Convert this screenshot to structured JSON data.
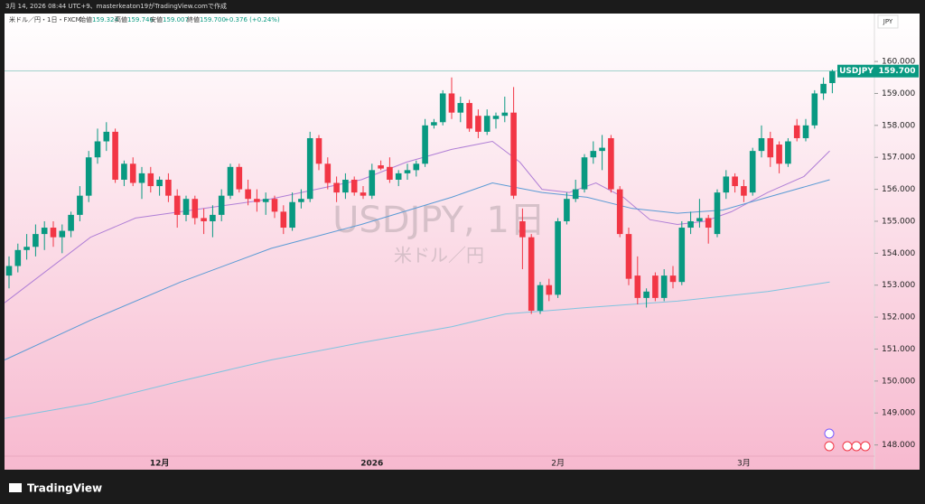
{
  "chart_data": {
    "type": "candlestick",
    "caption": "3月 14, 2026 08:44 UTC+9、masterkeaton19がTradingView.comで作成",
    "legend": {
      "instrument": "米ドル／円・1日・FXCM",
      "open_label": "始値",
      "open": "159.324",
      "high_label": "高値",
      "high": "159.746",
      "low_label": "安値",
      "low": "159.007",
      "close_label": "終値",
      "close": "159.700",
      "change": "+0.376 (+0.24%)"
    },
    "currency": "JPY",
    "watermark": "USDJPY, 1日",
    "watermark_sub": "米ドル／円",
    "symbol": "USDJPY",
    "last_price": {
      "value": 159.7,
      "label": "159.700"
    },
    "brand": "TradingView",
    "up_color": "#089981",
    "down_color": "#f23645",
    "ylim": [
      147.65,
      161.5
    ],
    "yticks": [
      {
        "value": 148,
        "label": "148.000"
      },
      {
        "value": 149,
        "label": "149.000"
      },
      {
        "value": 150,
        "label": "150.000"
      },
      {
        "value": 151,
        "label": "151.000"
      },
      {
        "value": 152,
        "label": "152.000"
      },
      {
        "value": 153,
        "label": "153.000"
      },
      {
        "value": 154,
        "label": "154.000"
      },
      {
        "value": 155,
        "label": "155.000"
      },
      {
        "value": 156,
        "label": "156.000"
      },
      {
        "value": 157,
        "label": "157.000"
      },
      {
        "value": 158,
        "label": "158.000"
      },
      {
        "value": 159,
        "label": "159.000"
      },
      {
        "value": 160,
        "label": "160.000"
      }
    ],
    "categories": [
      null,
      null,
      null,
      null,
      null,
      null,
      null,
      null,
      null,
      null,
      null,
      null,
      null,
      null,
      null,
      null,
      null,
      "12月",
      null,
      null,
      null,
      null,
      null,
      null,
      null,
      null,
      null,
      null,
      null,
      null,
      null,
      null,
      null,
      null,
      null,
      null,
      null,
      null,
      null,
      null,
      null,
      "2026",
      null,
      null,
      null,
      null,
      null,
      null,
      null,
      null,
      null,
      null,
      null,
      null,
      null,
      null,
      null,
      null,
      null,
      null,
      null,
      null,
      "2月",
      null,
      null,
      null,
      null,
      null,
      null,
      null,
      null,
      null,
      null,
      null,
      null,
      null,
      null,
      null,
      null,
      null,
      null,
      null,
      null,
      "3月",
      null,
      null,
      null,
      null,
      null,
      null,
      null,
      null,
      null,
      null
    ],
    "ohlc": [
      [
        153.3,
        153.9,
        152.9,
        153.6
      ],
      [
        153.6,
        154.3,
        153.4,
        154.1
      ],
      [
        154.1,
        154.6,
        153.8,
        154.2
      ],
      [
        154.2,
        154.9,
        153.9,
        154.6
      ],
      [
        154.6,
        155.0,
        154.1,
        154.8
      ],
      [
        154.8,
        155.0,
        154.2,
        154.5
      ],
      [
        154.5,
        154.9,
        154.0,
        154.7
      ],
      [
        154.7,
        155.3,
        154.5,
        155.2
      ],
      [
        155.2,
        156.1,
        155.0,
        155.8
      ],
      [
        155.8,
        157.2,
        155.6,
        157.0
      ],
      [
        157.0,
        157.9,
        156.8,
        157.5
      ],
      [
        157.5,
        158.1,
        157.2,
        157.8
      ],
      [
        157.8,
        157.9,
        156.2,
        156.3
      ],
      [
        156.3,
        156.9,
        156.1,
        156.8
      ],
      [
        156.8,
        157.0,
        156.1,
        156.2
      ],
      [
        156.2,
        156.7,
        155.7,
        156.5
      ],
      [
        156.5,
        156.7,
        155.9,
        156.1
      ],
      [
        156.1,
        156.4,
        155.8,
        156.3
      ],
      [
        156.3,
        156.5,
        155.6,
        155.8
      ],
      [
        155.8,
        156.0,
        154.8,
        155.2
      ],
      [
        155.2,
        155.8,
        155.0,
        155.7
      ],
      [
        155.7,
        155.8,
        154.9,
        155.1
      ],
      [
        155.1,
        155.4,
        154.6,
        155.0
      ],
      [
        155.0,
        155.5,
        154.5,
        155.2
      ],
      [
        155.2,
        156.0,
        155.0,
        155.8
      ],
      [
        155.8,
        156.8,
        155.7,
        156.7
      ],
      [
        156.7,
        156.8,
        155.9,
        156.0
      ],
      [
        156.0,
        156.3,
        155.5,
        155.7
      ],
      [
        155.7,
        156.0,
        155.3,
        155.6
      ],
      [
        155.6,
        155.9,
        155.2,
        155.7
      ],
      [
        155.7,
        155.8,
        155.1,
        155.3
      ],
      [
        155.3,
        155.5,
        154.6,
        154.8
      ],
      [
        154.8,
        155.9,
        154.7,
        155.6
      ],
      [
        155.6,
        156.0,
        155.4,
        155.7
      ],
      [
        155.7,
        157.8,
        155.6,
        157.6
      ],
      [
        157.6,
        157.7,
        156.6,
        156.8
      ],
      [
        156.8,
        157.0,
        156.0,
        156.2
      ],
      [
        156.2,
        156.4,
        155.6,
        155.9
      ],
      [
        155.9,
        156.5,
        155.7,
        156.3
      ],
      [
        156.3,
        156.4,
        155.8,
        155.9
      ],
      [
        155.9,
        156.1,
        155.7,
        155.8
      ],
      [
        155.8,
        156.8,
        155.7,
        156.6
      ],
      [
        156.75,
        156.9,
        156.6,
        156.65
      ],
      [
        156.7,
        157.0,
        156.2,
        156.3
      ],
      [
        156.3,
        156.6,
        156.1,
        156.5
      ],
      [
        156.5,
        156.8,
        156.3,
        156.6
      ],
      [
        156.6,
        156.9,
        156.4,
        156.8
      ],
      [
        156.8,
        158.2,
        156.7,
        158.0
      ],
      [
        158.0,
        158.2,
        157.9,
        158.1
      ],
      [
        158.1,
        159.1,
        158.0,
        159.0
      ],
      [
        159.0,
        159.5,
        158.2,
        158.4
      ],
      [
        158.4,
        158.9,
        158.1,
        158.7
      ],
      [
        158.7,
        158.8,
        157.8,
        157.9
      ],
      [
        158.3,
        158.5,
        157.6,
        157.8
      ],
      [
        157.8,
        158.5,
        157.7,
        158.3
      ],
      [
        158.2,
        158.4,
        157.9,
        158.3
      ],
      [
        158.3,
        158.9,
        158.1,
        158.4
      ],
      [
        158.4,
        159.2,
        155.7,
        155.8
      ],
      [
        155.0,
        155.4,
        153.5,
        154.5
      ],
      [
        154.5,
        154.6,
        152.1,
        152.2
      ],
      [
        152.2,
        153.1,
        152.1,
        153.0
      ],
      [
        153.0,
        153.2,
        152.5,
        152.7
      ],
      [
        152.7,
        155.1,
        152.6,
        155.0
      ],
      [
        155.0,
        155.9,
        154.9,
        155.7
      ],
      [
        155.7,
        156.3,
        155.6,
        156.0
      ],
      [
        156.0,
        157.1,
        155.9,
        157.0
      ],
      [
        157.0,
        157.5,
        156.8,
        157.2
      ],
      [
        157.2,
        157.7,
        156.6,
        157.3
      ],
      [
        157.6,
        157.7,
        155.9,
        156.0
      ],
      [
        156.0,
        156.1,
        154.5,
        154.6
      ],
      [
        154.6,
        154.8,
        153.0,
        153.2
      ],
      [
        153.3,
        153.9,
        152.4,
        152.6
      ],
      [
        152.6,
        152.9,
        152.3,
        152.8
      ],
      [
        153.3,
        153.4,
        152.5,
        152.6
      ],
      [
        152.6,
        153.5,
        152.5,
        153.3
      ],
      [
        153.3,
        153.6,
        152.9,
        153.1
      ],
      [
        153.1,
        155.0,
        153.0,
        154.8
      ],
      [
        154.8,
        155.3,
        154.6,
        155.0
      ],
      [
        155.0,
        155.7,
        154.8,
        155.1
      ],
      [
        155.1,
        155.2,
        154.3,
        154.8
      ],
      [
        154.6,
        156.0,
        154.5,
        155.9
      ],
      [
        155.9,
        156.6,
        155.7,
        156.4
      ],
      [
        156.4,
        156.5,
        155.9,
        156.1
      ],
      [
        156.1,
        156.3,
        155.6,
        155.8
      ],
      [
        155.9,
        157.3,
        155.8,
        157.2
      ],
      [
        157.2,
        158.0,
        157.0,
        157.6
      ],
      [
        157.6,
        157.8,
        156.7,
        157.0
      ],
      [
        157.4,
        157.5,
        156.5,
        156.8
      ],
      [
        156.8,
        157.6,
        156.7,
        157.5
      ],
      [
        158.0,
        158.2,
        157.5,
        157.6
      ],
      [
        157.6,
        158.2,
        157.5,
        158.0
      ],
      [
        158.0,
        159.1,
        157.9,
        159.0
      ],
      [
        159.0,
        159.5,
        158.8,
        159.3
      ],
      [
        159.324,
        159.746,
        159.007,
        159.7
      ]
    ],
    "lines": [
      {
        "color": "#b07fd6",
        "x": [
          -0.5,
          9.2,
          14.3,
          19.4,
          24.5,
          29.6,
          34.7,
          39.8,
          44.9,
          50,
          54.6,
          57.7,
          60.2,
          63.3,
          66.3,
          69.4,
          72.4,
          75.5,
          78.6,
          81.6,
          85.7,
          89.8,
          92.7
        ],
        "values": [
          152.45,
          154.5,
          155.1,
          155.3,
          155.5,
          155.7,
          156.0,
          156.3,
          156.85,
          157.25,
          157.5,
          156.85,
          156.0,
          155.9,
          156.2,
          155.75,
          155.05,
          154.9,
          155.0,
          155.3,
          155.9,
          156.4,
          157.2
        ]
      },
      {
        "color": "#5b9bd5",
        "x": [
          -0.5,
          9.2,
          19.4,
          29.6,
          39.8,
          50,
          54.6,
          60.2,
          65.3,
          70.4,
          75.5,
          80.6,
          85.7,
          92.7
        ],
        "values": [
          150.66,
          151.9,
          153.1,
          154.15,
          154.9,
          155.75,
          156.2,
          155.9,
          155.75,
          155.4,
          155.25,
          155.35,
          155.75,
          156.3
        ]
      },
      {
        "color": "#7fc4e0",
        "x": [
          -0.5,
          9.2,
          19.4,
          29.6,
          39.8,
          50,
          56.1,
          65.3,
          75.5,
          85.7,
          92.7
        ],
        "values": [
          148.83,
          149.3,
          150.0,
          150.66,
          151.2,
          151.7,
          152.1,
          152.3,
          152.5,
          152.8,
          153.1
        ]
      }
    ]
  }
}
